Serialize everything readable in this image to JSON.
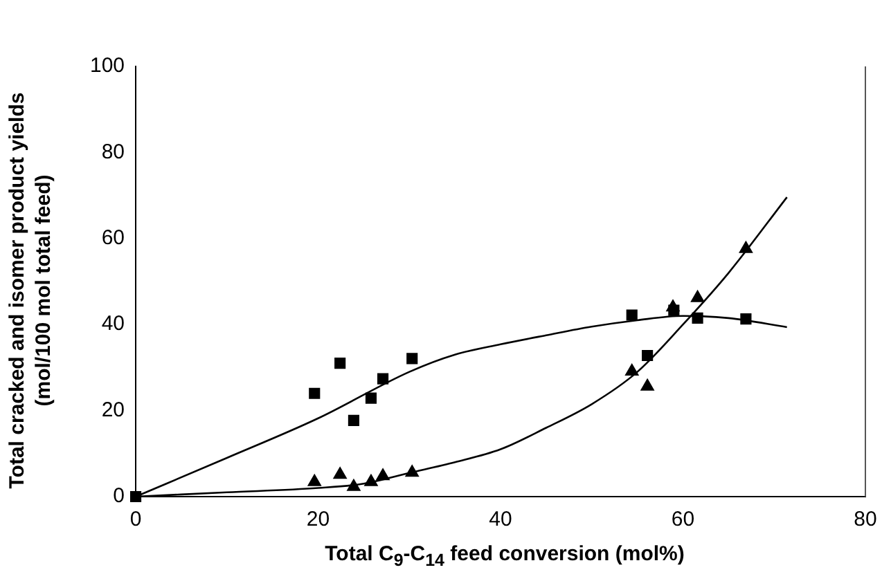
{
  "chart_data": {
    "type": "scatter",
    "xlabel": "Total C$_{9}$-C$_{14}$ feed conversion (mol%)",
    "ylabel": "Total cracked and isomer product yields (mol/100 mol total feed)",
    "xlim": [
      0,
      80
    ],
    "xticks": [
      0,
      20,
      40,
      60,
      80
    ],
    "ylim": [
      0,
      100
    ],
    "yticks": [
      0,
      20,
      40,
      60,
      80,
      100
    ],
    "grid": false,
    "legend": false,
    "series": [
      {
        "type": "scatter",
        "marker": "square",
        "color": "#000000",
        "x": [
          0,
          19.6,
          22.4,
          23.9,
          25.8,
          27.1,
          30.3,
          54.4,
          56.1,
          59.0,
          61.6,
          66.9
        ],
        "values": [
          0,
          24.0,
          31.0,
          17.7,
          22.9,
          27.4,
          32.1,
          42.2,
          32.8,
          43.3,
          41.5,
          41.3
        ]
      },
      {
        "type": "scatter",
        "marker": "triangle",
        "color": "#000000",
        "x": [
          19.6,
          22.4,
          23.9,
          25.8,
          27.1,
          30.3,
          54.4,
          56.1,
          58.9,
          61.6,
          66.9
        ],
        "values": [
          3.4,
          5.1,
          2.3,
          3.4,
          4.8,
          5.6,
          29.1,
          25.6,
          44.0,
          46.2,
          57.6
        ]
      },
      {
        "type": "line",
        "marker": "none",
        "line_style": "solid",
        "color": "#000000",
        "x": [
          0,
          10,
          20,
          30,
          35,
          40,
          45,
          50,
          55,
          60,
          65,
          71.4
        ],
        "values": [
          0,
          9,
          18.2,
          29,
          33,
          35.4,
          37.5,
          39.5,
          41,
          42,
          41.5,
          39.4
        ]
      },
      {
        "type": "line",
        "marker": "none",
        "line_style": "solid",
        "color": "#000000",
        "x": [
          0,
          10,
          20,
          25,
          30,
          35,
          40,
          45,
          50,
          55,
          60,
          65,
          71.4
        ],
        "values": [
          0,
          1,
          2,
          3,
          5.5,
          8,
          11,
          16,
          21.5,
          29,
          40,
          52,
          69.6
        ]
      }
    ]
  }
}
